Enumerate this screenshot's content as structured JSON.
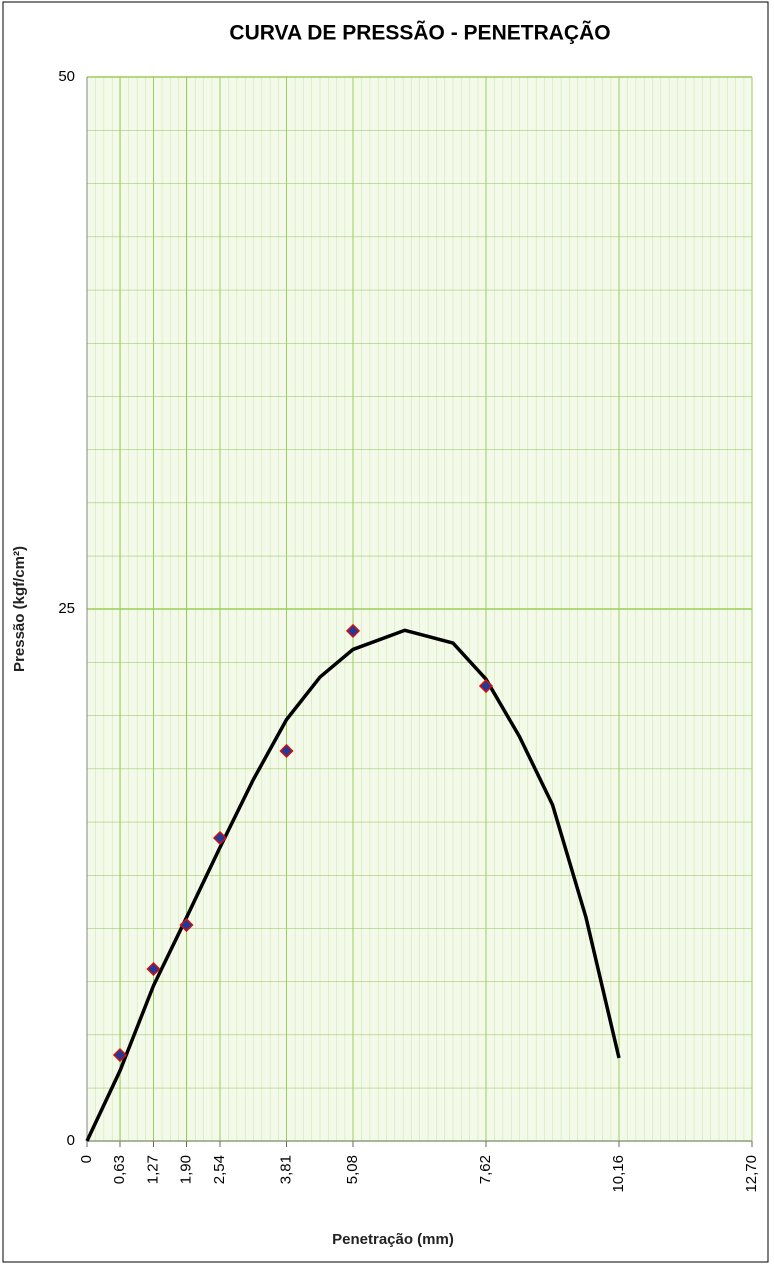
{
  "chart_data": {
    "type": "scatter",
    "title": "CURVA DE PRESSÃO - PENETRAÇÃO",
    "x_label": "Penetração (mm)",
    "y_label": "Pressão (kgf/cm²)",
    "series": [
      {
        "color": "#1f3a9a",
        "edge": "#d01010",
        "x": [
          0.63,
          1.27,
          1.9,
          2.54,
          3.81,
          5.08,
          7.62
        ],
        "values": [
          4.04,
          8.08,
          10.15,
          14.24,
          18.33,
          23.97,
          21.38
        ]
      }
    ],
    "trendline": {
      "color": "#000000",
      "x": [
        0,
        0.63,
        1.27,
        1.9,
        2.54,
        3.18,
        3.81,
        4.45,
        5.08,
        6.07,
        6.99,
        7.62,
        8.26,
        8.89,
        9.53,
        10.16
      ],
      "values": [
        0,
        3.3,
        7.3,
        10.5,
        13.8,
        17.0,
        19.8,
        21.8,
        23.1,
        24.0,
        23.4,
        21.7,
        19.0,
        15.8,
        10.5,
        3.9
      ]
    },
    "xlim": [
      0,
      12.7
    ],
    "ylim": [
      0,
      50
    ],
    "xticks": [
      0,
      {
        "value": 0.63,
        "label": "0,63"
      },
      {
        "value": 1.27,
        "label": "1,27"
      },
      {
        "value": 1.9,
        "label": "1,90"
      },
      {
        "value": 2.54,
        "label": "2,54"
      },
      {
        "value": 3.81,
        "label": "3,81"
      },
      {
        "value": 5.08,
        "label": "5,08"
      },
      {
        "value": 7.62,
        "label": "7,62"
      },
      {
        "value": 10.16,
        "label": "10,16"
      },
      {
        "value": 12.7,
        "label": "12,70"
      }
    ],
    "yticks": [
      0,
      25,
      50
    ],
    "grid": true,
    "grid_color": "#9ccc5a"
  }
}
